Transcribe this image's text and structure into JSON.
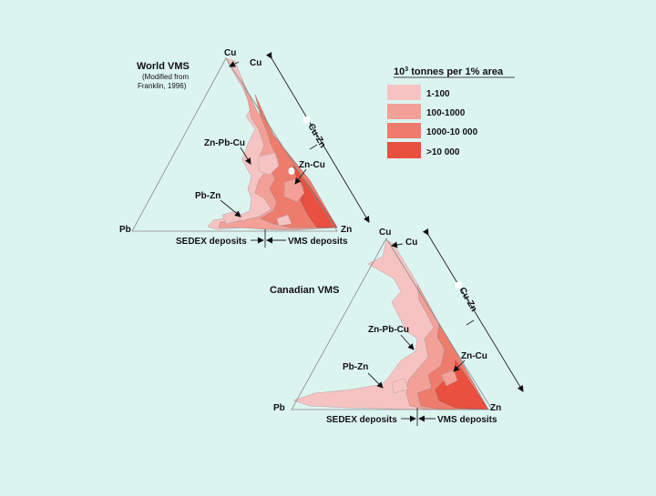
{
  "legend": {
    "title_base": "10",
    "title_exp": "3",
    "title_rest": " tonnes per 1% area",
    "items": [
      {
        "label": "1-100",
        "color": "#f6c3c3"
      },
      {
        "label": "100-1000",
        "color": "#f2a098"
      },
      {
        "label": "1000-10 000",
        "color": "#ee7c6c"
      },
      {
        "label": ">10 000",
        "color": "#e9503f"
      }
    ]
  },
  "world": {
    "title": "World VMS",
    "subtitle_line1": "(Modified from",
    "subtitle_line2": "Franklin, 1996)",
    "apex_cu": "Cu",
    "apex_pb": "Pb",
    "apex_zn": "Zn",
    "axis_cu": "Cu",
    "axis_cuzn": "Cu-Zn",
    "field_znpbcu": "Zn-Pb-Cu",
    "field_zncu": "Zn-Cu",
    "field_pbzn": "Pb-Zn",
    "sedex": "SEDEX deposits",
    "vms": "VMS deposits"
  },
  "canada": {
    "title": "Canadian VMS",
    "apex_cu": "Cu",
    "apex_pb": "Pb",
    "apex_zn": "Zn",
    "axis_cu": "Cu",
    "axis_cuzn": "Cu-Zn",
    "field_znpbcu": "Zn-Pb-Cu",
    "field_zncu": "Zn-Cu",
    "field_pbzn": "Pb-Zn",
    "sedex": "SEDEX deposits",
    "vms": "VMS deposits"
  }
}
